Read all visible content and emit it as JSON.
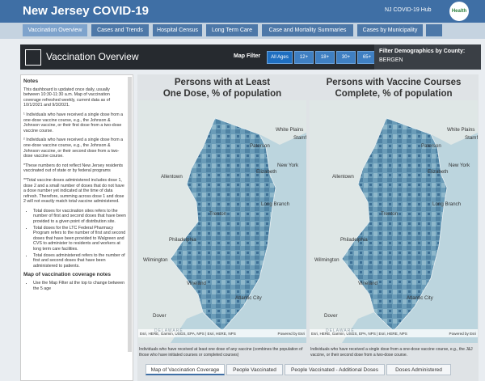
{
  "header": {
    "title": "New Jersey COVID-19",
    "hub": "NJ COVID-19 Hub",
    "logo": "Health"
  },
  "tabs": [
    "Vaccination Overview",
    "Cases and Trends",
    "Hospital Census",
    "Long Term Care",
    "Case and Mortality Summaries",
    "Cases by Municipality"
  ],
  "banner": {
    "title": "Vaccination Overview",
    "map_filter": "Map Filter",
    "filters": [
      "All Ages",
      "12+",
      "18+",
      "30+",
      "65+"
    ],
    "demographics_label": "Filter Demographics by County:",
    "county": "BERGEN"
  },
  "notes": {
    "heading": "Notes",
    "paragraphs": [
      "This dashboard is updated once daily, usually between 10:30-11:30 a.m. Map of vaccination coverage refreshed weekly, current data as of 10/1/2021 and 9/3/2021.",
      "¹ Individuals who have received a single dose from a one-dose vaccine course, e.g., the Johnson & Johnson vaccine, or their first dose from a two-dose vaccine course.",
      "² Individuals who have received a single dose from a one-dose vaccine course, e.g., the Johnson & Johnson vaccine, or their second dose from a two-dose vaccine course.",
      "*These numbers do not reflect New Jersey residents vaccinated out of state or by federal programs",
      "**Total vaccine doses administered includes dose 1, dose 2 and a small number of doses that do not have a dose number yet indicated at the time of data refresh. Therefore, summing across dose 1 and dose 2 will not exactly match total vaccine administered."
    ],
    "bullets": [
      "Total doses for vaccination sites refers to the number of first and second doses that have been provided to a given point of distribution site.",
      "Total doses for the LTC Federal Pharmacy Program refers to the number of first and second doses that have been provided to Walgreen and CVS to administer to residents and workers at long term care facilities.",
      "Total doses administered refers to the number of first and second doses that have been administered to patients."
    ],
    "heading2": "Map of vaccination coverage notes",
    "bullets2": [
      "Use the Map Filter at the top to change between the 5 age"
    ]
  },
  "maps": [
    {
      "title_line1": "Persons with at Least",
      "title_line2": "One Dose, % of population",
      "places": [
        "White Plains",
        "Stamford",
        "Paterson",
        "New York",
        "Elizabeth",
        "Allentown",
        "Trenton",
        "Long Branch",
        "Philadelphia",
        "Wilmington",
        "Vineland",
        "Atlantic City",
        "Dover",
        "DELAWARE"
      ],
      "attribution": "Esri, HERE, Garmin, USGS, EPA, NPS | Esri, HERE, NPS",
      "powered": "Powered by Esri",
      "caption": "Individuals who have received at least one dose of any vaccine (combines the population of those who have initiated courses or completed courses)"
    },
    {
      "title_line1": "Persons with Vaccine Courses",
      "title_line2": "Complete, % of population",
      "places": [
        "White Plains",
        "Stamford",
        "Paterson",
        "New York",
        "Elizabeth",
        "Allentown",
        "Trenton",
        "Long Branch",
        "Philadelphia",
        "Wilmington",
        "Vineland",
        "Atlantic City",
        "Dover",
        "DELAWARE"
      ],
      "attribution": "Esri, HERE, Garmin, USGS, EPA, NPS | Esri, HERE, NPS",
      "powered": "Powered by Esri",
      "caption": "Individuals who have received a single dose from a one-dose vaccine course, e.g., the J&J vaccine, or their second dose from a two-dose course."
    }
  ],
  "bottom_tabs": [
    "Map of Vaccination Coverage",
    "People Vaccinated",
    "People Vaccinated - Additional Doses",
    "Doses Administered"
  ]
}
